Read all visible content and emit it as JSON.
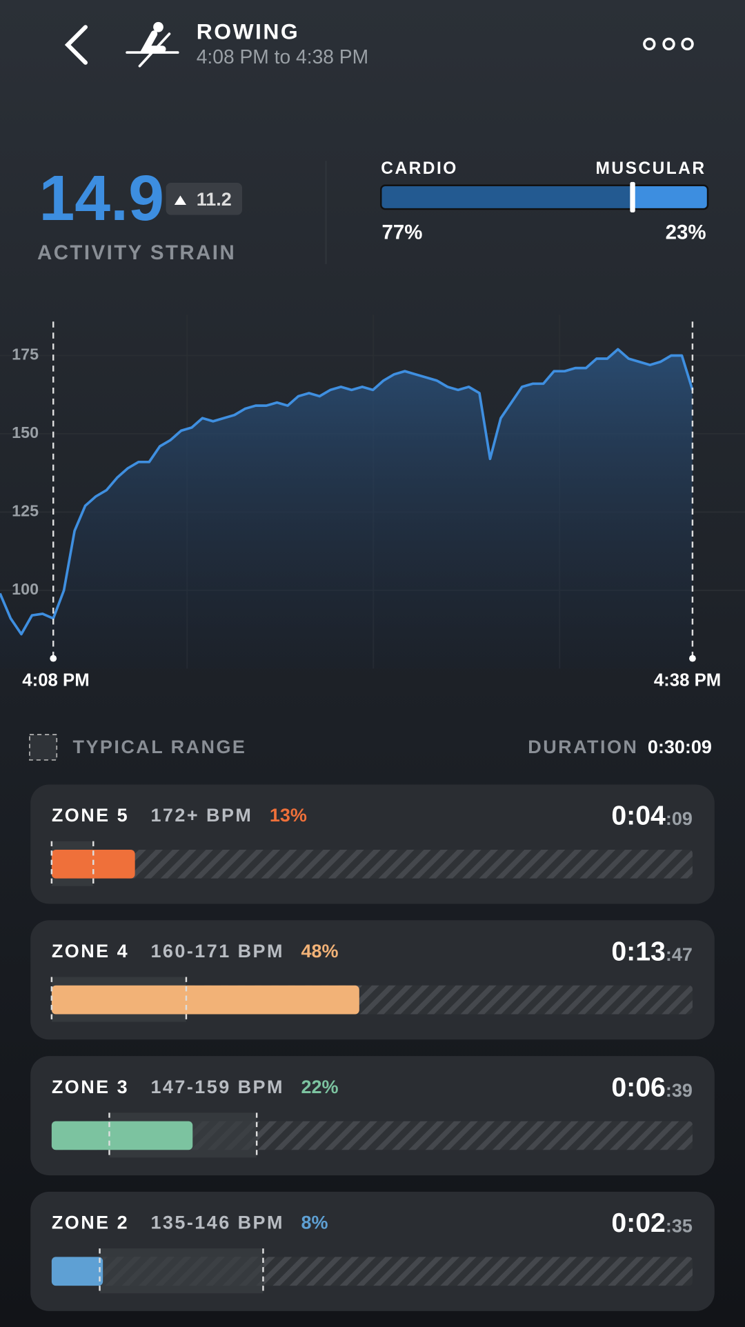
{
  "header": {
    "title": "ROWING",
    "subtitle": "4:08 PM to 4:38 PM"
  },
  "strain": {
    "value": 14.9,
    "change": 11.2,
    "label": "ACTIVITY STRAIN"
  },
  "strain_split": {
    "cardio": {
      "label": "CARDIO",
      "value": 77,
      "value_label": "77%",
      "color": "#235a91"
    },
    "muscular": {
      "label": "MUSCULAR",
      "value": 23,
      "value_label": "23%",
      "color": "#3d8ee0"
    }
  },
  "chart_data": {
    "type": "line",
    "categories": [
      null,
      null,
      null,
      null,
      null,
      "4:08 PM",
      null,
      null,
      null,
      null,
      null,
      null,
      null,
      null,
      null,
      null,
      null,
      null,
      null,
      null,
      null,
      null,
      null,
      null,
      null,
      null,
      null,
      null,
      null,
      null,
      null,
      null,
      null,
      null,
      null,
      null,
      null,
      null,
      null,
      null,
      null,
      null,
      null,
      null,
      null,
      null,
      null,
      null,
      null,
      null,
      null,
      null,
      null,
      null,
      null,
      null,
      null,
      null,
      null,
      null,
      null,
      null,
      null,
      null,
      null,
      "4:38 PM"
    ],
    "values": [
      99,
      91,
      86,
      92,
      92.5,
      91,
      100,
      119,
      127,
      130,
      132,
      136,
      139,
      141,
      141,
      146,
      148,
      151,
      152,
      155,
      154,
      155,
      156,
      158,
      159,
      159,
      160,
      159,
      162,
      163,
      162,
      164,
      165,
      164,
      165,
      164,
      167,
      169,
      170,
      169,
      168,
      167,
      165,
      164,
      165,
      163,
      142,
      155,
      160,
      165,
      166,
      166,
      170,
      170,
      171,
      171,
      174,
      174,
      177,
      174,
      173,
      172,
      173,
      175,
      175,
      164
    ],
    "color": "#3f8fe0",
    "ylim": [
      75,
      188
    ],
    "yticks": [
      100,
      125,
      150,
      175
    ],
    "grid": true
  },
  "typical_range_label": "TYPICAL RANGE",
  "duration": {
    "label": "DURATION",
    "value": "0:30:09"
  },
  "zones": [
    {
      "name": "ZONE 5",
      "bpm": "172+ BPM",
      "percent": 13,
      "percent_label": "13%",
      "time": "0:04",
      "time_seconds": ":09",
      "color": "#ef703a",
      "typical_range": [
        0,
        6.5
      ]
    },
    {
      "name": "ZONE 4",
      "bpm": "160-171 BPM",
      "percent": 48,
      "percent_label": "48%",
      "time": "0:13",
      "time_seconds": ":47",
      "color": "#f2b277",
      "typical_range": [
        0,
        21
      ]
    },
    {
      "name": "ZONE 3",
      "bpm": "147-159 BPM",
      "percent": 22,
      "percent_label": "22%",
      "time": "0:06",
      "time_seconds": ":39",
      "color": "#7cc3a0",
      "typical_range": [
        9,
        32
      ]
    },
    {
      "name": "ZONE 2",
      "bpm": "135-146 BPM",
      "percent": 8,
      "percent_label": "8%",
      "time": "0:02",
      "time_seconds": ":35",
      "color": "#5ea0d4",
      "typical_range": [
        7.5,
        33
      ]
    }
  ]
}
